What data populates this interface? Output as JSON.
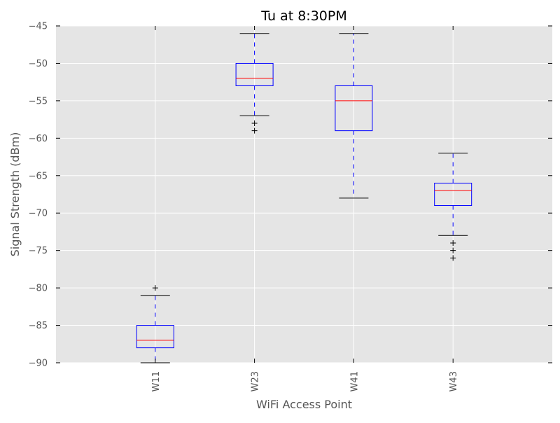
{
  "chart_data": {
    "type": "box",
    "title": "Tu at 8:30PM",
    "xlabel": "WiFi Access Point",
    "ylabel": "Signal Strength (dBm)",
    "ylim": [
      -90,
      -45
    ],
    "yticks": [
      -90,
      -85,
      -80,
      -75,
      -70,
      -65,
      -60,
      -55,
      -50,
      -45
    ],
    "ytick_labels": [
      "−90",
      "−85",
      "−80",
      "−75",
      "−70",
      "−65",
      "−60",
      "−55",
      "−50",
      "−45"
    ],
    "grid": true,
    "categories": [
      "W11",
      "W23",
      "W41",
      "W43"
    ],
    "boxes": [
      {
        "label": "W11",
        "whisker_low": -90,
        "q1": -88,
        "median": -87,
        "q3": -85,
        "whisker_high": -81,
        "outliers": [
          -80
        ]
      },
      {
        "label": "W23",
        "whisker_low": -57,
        "q1": -53,
        "median": -52,
        "q3": -50,
        "whisker_high": -46,
        "outliers": [
          -58,
          -59
        ]
      },
      {
        "label": "W41",
        "whisker_low": -68,
        "q1": -59,
        "median": -55,
        "q3": -53,
        "whisker_high": -46,
        "outliers": []
      },
      {
        "label": "W43",
        "whisker_low": -73,
        "q1": -69,
        "median": -67,
        "q3": -66,
        "whisker_high": -62,
        "outliers": [
          -74,
          -75,
          -76
        ]
      }
    ],
    "colors": {
      "plot_background": "#e5e5e5",
      "grid": "#ffffff",
      "box": "#0000ff",
      "median": "#ff0000",
      "caps": "#000000",
      "tick_text": "#555555"
    }
  }
}
